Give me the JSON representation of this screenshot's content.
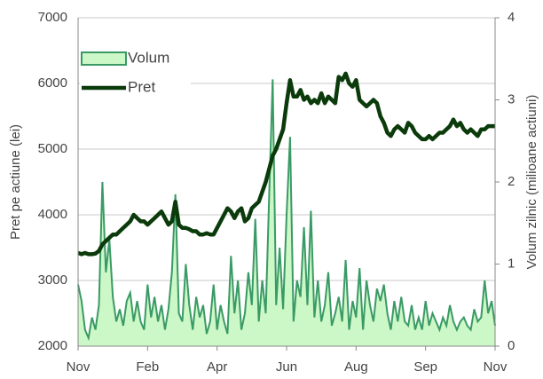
{
  "chart_data": {
    "type": "line",
    "y_label": "Pret pe actiune (lei)",
    "y2_label": "Volum zilnic (milioane actiuni)",
    "categories": [
      "Nov",
      null,
      null,
      null,
      null,
      null,
      null,
      null,
      null,
      null,
      null,
      null,
      null,
      null,
      null,
      null,
      null,
      null,
      null,
      null,
      "Feb",
      null,
      null,
      null,
      null,
      null,
      null,
      null,
      null,
      null,
      null,
      null,
      null,
      null,
      null,
      null,
      null,
      null,
      null,
      null,
      "Apr",
      null,
      null,
      null,
      null,
      null,
      null,
      null,
      null,
      null,
      null,
      null,
      null,
      null,
      null,
      null,
      null,
      null,
      null,
      null,
      "Jun",
      null,
      null,
      null,
      null,
      null,
      null,
      null,
      null,
      null,
      null,
      null,
      null,
      null,
      null,
      null,
      null,
      null,
      null,
      null,
      "Aug",
      null,
      null,
      null,
      null,
      null,
      null,
      null,
      null,
      null,
      null,
      null,
      null,
      null,
      null,
      null,
      null,
      null,
      null,
      null,
      "Sep",
      null,
      null,
      null,
      null,
      null,
      null,
      null,
      null,
      null,
      null,
      null,
      null,
      null,
      null,
      null,
      null,
      null,
      null,
      null,
      "Nov"
    ],
    "ylim": [
      2000,
      7000
    ],
    "yticks": [
      2000,
      3000,
      4000,
      5000,
      6000,
      7000
    ],
    "y2lim": [
      0,
      4
    ],
    "y2ticks": [
      0,
      1,
      2,
      3,
      4
    ],
    "grid": true,
    "legend": "top-left",
    "series": [
      {
        "name": "Volum",
        "axis": "y2",
        "style": "area",
        "color": "#3a9a66",
        "fill": "#ccf7c6",
        "values": [
          0.75,
          0.55,
          0.2,
          0.1,
          0.35,
          0.2,
          0.5,
          2.0,
          0.9,
          1.3,
          0.6,
          0.3,
          0.45,
          0.25,
          0.55,
          0.65,
          0.3,
          0.55,
          0.3,
          0.2,
          0.75,
          0.35,
          0.6,
          0.3,
          0.5,
          0.2,
          0.45,
          0.9,
          1.85,
          0.4,
          0.3,
          1.0,
          0.5,
          0.2,
          0.6,
          0.35,
          0.5,
          0.15,
          0.3,
          0.75,
          0.2,
          0.5,
          0.3,
          0.15,
          1.1,
          0.4,
          0.8,
          0.2,
          0.4,
          0.9,
          0.5,
          1.55,
          0.3,
          0.8,
          0.4,
          1.85,
          3.25,
          0.5,
          1.2,
          0.45,
          1.6,
          2.55,
          0.3,
          0.8,
          0.6,
          1.45,
          0.5,
          1.65,
          0.35,
          0.8,
          0.3,
          0.5,
          0.9,
          0.25,
          0.4,
          0.6,
          0.3,
          1.05,
          0.2,
          0.55,
          0.35,
          0.95,
          0.2,
          0.8,
          0.5,
          0.3,
          0.7,
          0.55,
          0.75,
          0.4,
          0.2,
          0.55,
          0.3,
          0.6,
          0.3,
          0.25,
          0.5,
          0.2,
          0.35,
          0.2,
          0.55,
          0.25,
          0.4,
          0.3,
          0.2,
          0.35,
          0.25,
          0.5,
          0.3,
          0.2,
          0.3,
          0.35,
          0.25,
          0.2,
          0.45,
          0.3,
          0.35,
          0.8,
          0.4,
          0.55,
          0.25
        ]
      },
      {
        "name": "Pret",
        "axis": "y",
        "style": "line",
        "color": "#0b3a0b",
        "values": [
          3420,
          3400,
          3420,
          3400,
          3400,
          3410,
          3450,
          3550,
          3600,
          3650,
          3700,
          3700,
          3750,
          3800,
          3850,
          3900,
          4000,
          3950,
          3900,
          3900,
          3850,
          3900,
          3950,
          4000,
          4050,
          3950,
          3850,
          3900,
          4200,
          3850,
          3800,
          3800,
          3780,
          3750,
          3750,
          3700,
          3700,
          3720,
          3700,
          3700,
          3800,
          3900,
          4000,
          4100,
          4050,
          3950,
          4050,
          4100,
          3900,
          3950,
          4100,
          4150,
          4200,
          4350,
          4500,
          4700,
          4900,
          5000,
          5150,
          5300,
          5700,
          6050,
          5800,
          5800,
          5900,
          5750,
          5800,
          5700,
          5750,
          5700,
          5850,
          5700,
          5800,
          5750,
          5700,
          6100,
          6050,
          6150,
          6000,
          5950,
          6050,
          5750,
          5700,
          5650,
          5700,
          5750,
          5700,
          5500,
          5400,
          5250,
          5200,
          5300,
          5350,
          5300,
          5250,
          5400,
          5350,
          5250,
          5200,
          5150,
          5150,
          5200,
          5150,
          5200,
          5250,
          5250,
          5300,
          5350,
          5450,
          5350,
          5400,
          5300,
          5250,
          5300,
          5250,
          5200,
          5300,
          5300,
          5350,
          5350,
          5350
        ]
      }
    ]
  }
}
